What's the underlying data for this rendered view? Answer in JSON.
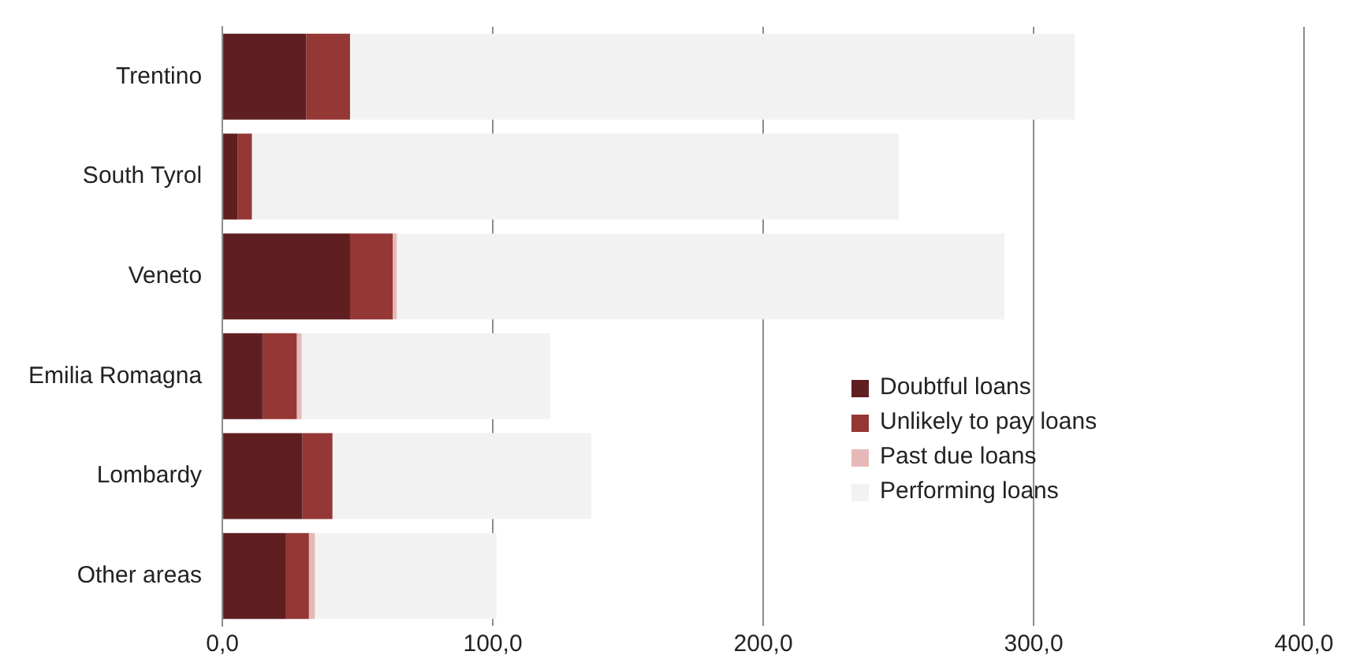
{
  "chart_data": {
    "type": "bar",
    "orientation": "horizontal",
    "stacked": true,
    "categories": [
      "Trentino",
      "South Tyrol",
      "Veneto",
      "Emilia Romagna",
      "Lombardy",
      "Other areas"
    ],
    "series": [
      {
        "name": "Doubtful loans",
        "color": "#5f1f20",
        "values": [
          31.0,
          5.7,
          47.2,
          14.8,
          29.6,
          23.3
        ]
      },
      {
        "name": "Unlikely to pay loans",
        "color": "#953735",
        "values": [
          16.2,
          5.2,
          15.8,
          12.7,
          11.1,
          8.7
        ]
      },
      {
        "name": "Past due loans",
        "color": "#e6b9b8",
        "values": [
          null,
          null,
          1.5,
          1.8,
          null,
          2.2
        ]
      },
      {
        "name": "Performing loans",
        "color": "#f2f2f2",
        "values": [
          268.0,
          239.3,
          224.7,
          91.9,
          95.8,
          67.2
        ]
      }
    ],
    "xlim": [
      0,
      400
    ],
    "xticks": [
      {
        "value": 0,
        "label": "0,0"
      },
      {
        "value": 100,
        "label": "100,0"
      },
      {
        "value": 200,
        "label": "200,0"
      },
      {
        "value": 300,
        "label": "300,0"
      },
      {
        "value": 400,
        "label": "400,0"
      }
    ],
    "grid": "x",
    "legend": "right"
  }
}
